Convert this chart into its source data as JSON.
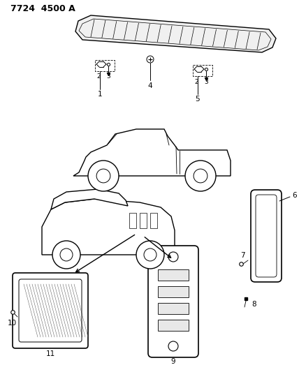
{
  "title": "7724  4500 A",
  "bg_color": "#ffffff",
  "line_color": "#000000",
  "title_fontsize": 9,
  "label_fontsize": 7.5,
  "fig_width": 4.28,
  "fig_height": 5.33,
  "dpi": 100
}
